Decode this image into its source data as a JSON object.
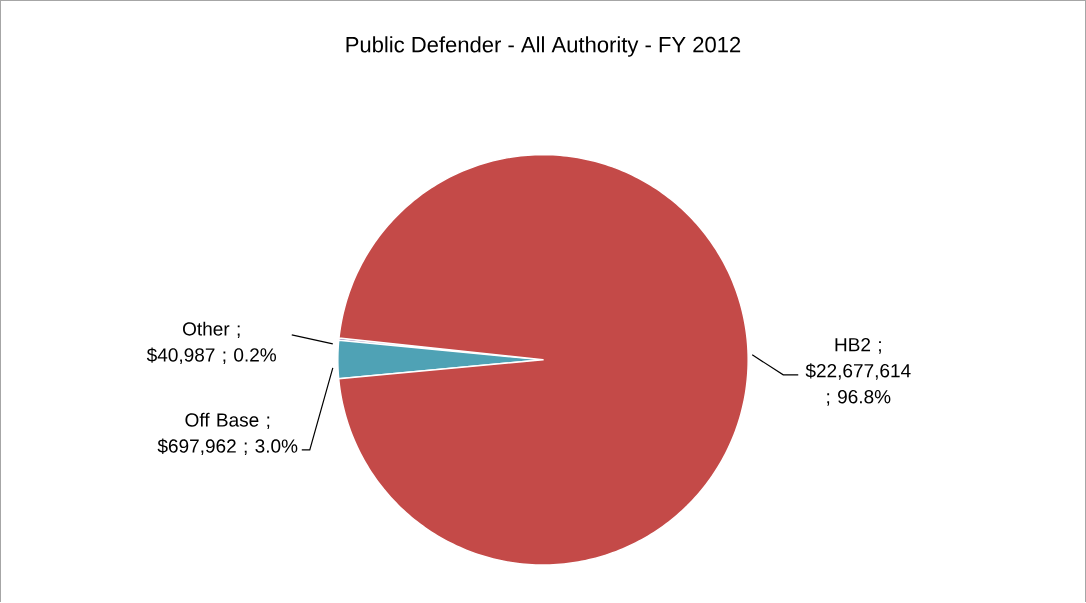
{
  "chart_data": {
    "type": "pie",
    "title": "Public Defender - All Authority  - FY 2012",
    "categories": [
      "Other",
      "Off Base",
      "HB2"
    ],
    "values": [
      40987,
      697962,
      22677614
    ],
    "colors": [
      "#8064a2",
      "#4fa2b5",
      "#c44a48"
    ],
    "value_labels": [
      "; $40,987 ; 0.2%",
      "; $697,962 ; 3.0%",
      "; $22,677,614 ; 96.8%"
    ]
  }
}
